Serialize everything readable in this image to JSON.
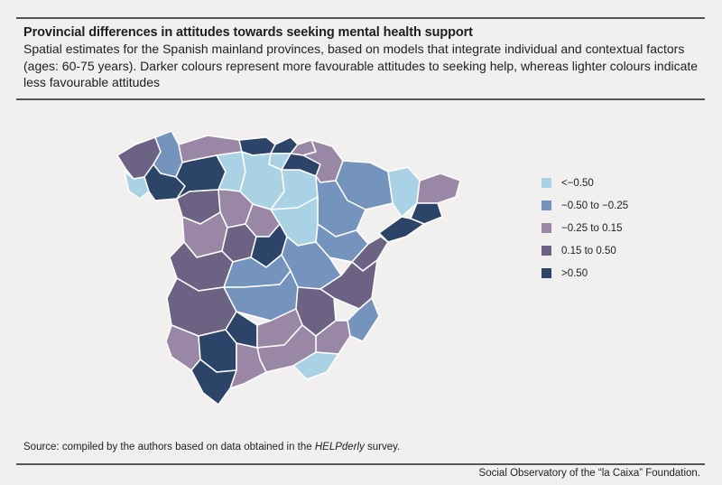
{
  "header": {
    "title": "Provincial differences in attitudes towards seeking mental health support",
    "subtitle": "Spatial estimates for the Spanish mainland provinces, based on models that integrate individual and contextual factors (ages: 60-75 years). Darker colours represent more favourable attitudes to seeking help, whereas lighter colours indicate less favourable attitudes"
  },
  "legend": {
    "items": [
      {
        "label": "<−0.50",
        "color": "#a9d2e4"
      },
      {
        "label": "−0.50 to −0.25",
        "color": "#7493bd"
      },
      {
        "label": "−0.25 to 0.15",
        "color": "#9a87a6"
      },
      {
        "label": "0.15 to 0.50",
        "color": "#6b6284"
      },
      {
        "label": ">0.50",
        "color": "#2b4467"
      }
    ]
  },
  "footer": {
    "source_prefix": "Source: compiled by the authors based on data obtained in the ",
    "source_survey": "HELPderly",
    "source_suffix": " survey.",
    "credit": "Social Observatory of the “la Caixa” Foundation."
  },
  "colors": {
    "background": "#f2f0ee",
    "border": "#ffffff",
    "rule": "#555555"
  }
}
